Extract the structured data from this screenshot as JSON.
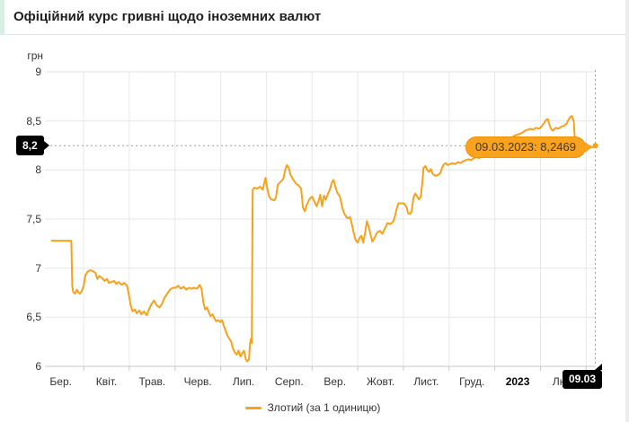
{
  "header": {
    "title": "Офіційний курс гривні щодо іноземних валют"
  },
  "colors": {
    "line": "#F9A11B",
    "tooltip_bg": "#F9A21E",
    "tooltip_border": "#EE9104",
    "badge_bg": "#000000",
    "badge_text": "#FFFFFF",
    "accent_strip": "#D8EFE4",
    "grid": "#E6E6E6",
    "grid_vertical": "#E8E8E8",
    "axis_line": "#C8C8C8",
    "guide_dash": "#9E9E9E",
    "axis_text": "#333333"
  },
  "chart_data": {
    "type": "line",
    "title": "Офіційний курс гривні щодо іноземних валют",
    "ylabel": "грн",
    "xlabel": "",
    "ylim": [
      6,
      9
    ],
    "x_range": [
      0.29,
      12.21
    ],
    "grid": true,
    "legend_position": "bottom",
    "yticks": [
      {
        "value": 9,
        "label": "9"
      },
      {
        "value": 8.5,
        "label": "8,5"
      },
      {
        "value": 8,
        "label": "8"
      },
      {
        "value": 7.5,
        "label": "7,5"
      },
      {
        "value": 7,
        "label": "7"
      },
      {
        "value": 6.5,
        "label": "6,5"
      },
      {
        "value": 6,
        "label": "6"
      }
    ],
    "xticks": [
      {
        "pos": 0.5,
        "label": "Бер.",
        "strong": false
      },
      {
        "pos": 1.5,
        "label": "Квіт.",
        "strong": false
      },
      {
        "pos": 2.5,
        "label": "Трав.",
        "strong": false
      },
      {
        "pos": 3.5,
        "label": "Черв.",
        "strong": false
      },
      {
        "pos": 4.5,
        "label": "Лип.",
        "strong": false
      },
      {
        "pos": 5.5,
        "label": "Серп.",
        "strong": false
      },
      {
        "pos": 6.5,
        "label": "Вер.",
        "strong": false
      },
      {
        "pos": 7.5,
        "label": "Жовт.",
        "strong": false
      },
      {
        "pos": 8.5,
        "label": "Лист.",
        "strong": false
      },
      {
        "pos": 9.5,
        "label": "Груд.",
        "strong": false
      },
      {
        "pos": 10.5,
        "label": "2023",
        "strong": true
      },
      {
        "pos": 11.5,
        "label": "Лют.",
        "strong": false
      }
    ],
    "gridline_months": [
      1,
      2,
      3,
      4,
      5,
      6,
      7,
      8,
      9,
      10,
      11,
      12
    ],
    "current_point": {
      "x": 12.2,
      "value": 8.2469,
      "value_label": "8,2",
      "date_label": "09.03",
      "tooltip": "09.03.2023: 8,2469"
    },
    "series": [
      {
        "name": "Злотий (за 1 одиницю)",
        "color": "#F9A11B",
        "points": [
          [
            0.3,
            7.28
          ],
          [
            0.71,
            7.28
          ],
          [
            0.73,
            7.28
          ],
          [
            0.75,
            6.82
          ],
          [
            0.77,
            6.76
          ],
          [
            0.81,
            6.74
          ],
          [
            0.85,
            6.78
          ],
          [
            0.89,
            6.75
          ],
          [
            0.92,
            6.74
          ],
          [
            0.96,
            6.77
          ],
          [
            1.0,
            6.82
          ],
          [
            1.04,
            6.93
          ],
          [
            1.08,
            6.96
          ],
          [
            1.14,
            6.98
          ],
          [
            1.2,
            6.97
          ],
          [
            1.26,
            6.95
          ],
          [
            1.3,
            6.89
          ],
          [
            1.34,
            6.92
          ],
          [
            1.4,
            6.9
          ],
          [
            1.46,
            6.87
          ],
          [
            1.51,
            6.89
          ],
          [
            1.55,
            6.85
          ],
          [
            1.61,
            6.86
          ],
          [
            1.67,
            6.87
          ],
          [
            1.71,
            6.84
          ],
          [
            1.77,
            6.86
          ],
          [
            1.83,
            6.83
          ],
          [
            1.89,
            6.85
          ],
          [
            1.95,
            6.82
          ],
          [
            1.99,
            6.73
          ],
          [
            2.03,
            6.62
          ],
          [
            2.07,
            6.56
          ],
          [
            2.12,
            6.58
          ],
          [
            2.16,
            6.54
          ],
          [
            2.22,
            6.57
          ],
          [
            2.26,
            6.53
          ],
          [
            2.32,
            6.56
          ],
          [
            2.38,
            6.52
          ],
          [
            2.42,
            6.57
          ],
          [
            2.48,
            6.63
          ],
          [
            2.54,
            6.67
          ],
          [
            2.6,
            6.62
          ],
          [
            2.66,
            6.6
          ],
          [
            2.72,
            6.64
          ],
          [
            2.77,
            6.7
          ],
          [
            2.83,
            6.74
          ],
          [
            2.89,
            6.78
          ],
          [
            2.95,
            6.8
          ],
          [
            3.01,
            6.8
          ],
          [
            3.07,
            6.82
          ],
          [
            3.13,
            6.79
          ],
          [
            3.19,
            6.81
          ],
          [
            3.25,
            6.78
          ],
          [
            3.31,
            6.8
          ],
          [
            3.36,
            6.79
          ],
          [
            3.42,
            6.8
          ],
          [
            3.48,
            6.79
          ],
          [
            3.54,
            6.83
          ],
          [
            3.58,
            6.79
          ],
          [
            3.62,
            6.65
          ],
          [
            3.66,
            6.58
          ],
          [
            3.7,
            6.6
          ],
          [
            3.74,
            6.55
          ],
          [
            3.78,
            6.51
          ],
          [
            3.82,
            6.53
          ],
          [
            3.86,
            6.49
          ],
          [
            3.9,
            6.46
          ],
          [
            3.95,
            6.47
          ],
          [
            3.99,
            6.45
          ],
          [
            4.03,
            6.47
          ],
          [
            4.07,
            6.41
          ],
          [
            4.11,
            6.36
          ],
          [
            4.15,
            6.31
          ],
          [
            4.19,
            6.28
          ],
          [
            4.23,
            6.25
          ],
          [
            4.27,
            6.18
          ],
          [
            4.31,
            6.14
          ],
          [
            4.35,
            6.12
          ],
          [
            4.39,
            6.16
          ],
          [
            4.43,
            6.1
          ],
          [
            4.47,
            6.13
          ],
          [
            4.51,
            6.16
          ],
          [
            4.55,
            6.07
          ],
          [
            4.58,
            6.05
          ],
          [
            4.62,
            6.07
          ],
          [
            4.64,
            6.22
          ],
          [
            4.66,
            6.28
          ],
          [
            4.68,
            6.24
          ],
          [
            4.7,
            7.8
          ],
          [
            4.74,
            7.82
          ],
          [
            4.8,
            7.81
          ],
          [
            4.86,
            7.83
          ],
          [
            4.92,
            7.8
          ],
          [
            4.98,
            7.92
          ],
          [
            5.02,
            7.81
          ],
          [
            5.06,
            7.73
          ],
          [
            5.11,
            7.7
          ],
          [
            5.17,
            7.69
          ],
          [
            5.21,
            7.72
          ],
          [
            5.25,
            7.85
          ],
          [
            5.31,
            7.88
          ],
          [
            5.37,
            7.91
          ],
          [
            5.41,
            8.0
          ],
          [
            5.45,
            8.05
          ],
          [
            5.49,
            8.02
          ],
          [
            5.53,
            7.95
          ],
          [
            5.59,
            7.9
          ],
          [
            5.65,
            7.86
          ],
          [
            5.71,
            7.84
          ],
          [
            5.76,
            7.81
          ],
          [
            5.8,
            7.62
          ],
          [
            5.84,
            7.58
          ],
          [
            5.88,
            7.64
          ],
          [
            5.94,
            7.7
          ],
          [
            6.0,
            7.73
          ],
          [
            6.06,
            7.67
          ],
          [
            6.1,
            7.63
          ],
          [
            6.14,
            7.68
          ],
          [
            6.18,
            7.75
          ],
          [
            6.22,
            7.63
          ],
          [
            6.26,
            7.74
          ],
          [
            6.3,
            7.7
          ],
          [
            6.35,
            7.76
          ],
          [
            6.39,
            7.8
          ],
          [
            6.43,
            7.87
          ],
          [
            6.47,
            7.9
          ],
          [
            6.51,
            7.83
          ],
          [
            6.55,
            7.77
          ],
          [
            6.61,
            7.73
          ],
          [
            6.67,
            7.6
          ],
          [
            6.71,
            7.55
          ],
          [
            6.77,
            7.51
          ],
          [
            6.83,
            7.52
          ],
          [
            6.87,
            7.45
          ],
          [
            6.91,
            7.36
          ],
          [
            6.95,
            7.29
          ],
          [
            7.0,
            7.26
          ],
          [
            7.04,
            7.31
          ],
          [
            7.08,
            7.33
          ],
          [
            7.12,
            7.26
          ],
          [
            7.16,
            7.36
          ],
          [
            7.2,
            7.48
          ],
          [
            7.24,
            7.42
          ],
          [
            7.28,
            7.34
          ],
          [
            7.32,
            7.27
          ],
          [
            7.36,
            7.3
          ],
          [
            7.42,
            7.36
          ],
          [
            7.48,
            7.38
          ],
          [
            7.54,
            7.35
          ],
          [
            7.59,
            7.4
          ],
          [
            7.65,
            7.46
          ],
          [
            7.71,
            7.45
          ],
          [
            7.77,
            7.47
          ],
          [
            7.81,
            7.52
          ],
          [
            7.85,
            7.6
          ],
          [
            7.89,
            7.66
          ],
          [
            7.95,
            7.66
          ],
          [
            8.01,
            7.66
          ],
          [
            8.07,
            7.62
          ],
          [
            8.1,
            7.56
          ],
          [
            8.14,
            7.55
          ],
          [
            8.18,
            7.58
          ],
          [
            8.22,
            7.72
          ],
          [
            8.26,
            7.76
          ],
          [
            8.3,
            7.73
          ],
          [
            8.34,
            7.7
          ],
          [
            8.38,
            7.73
          ],
          [
            8.42,
            7.9
          ],
          [
            8.44,
            8.02
          ],
          [
            8.48,
            8.04
          ],
          [
            8.52,
            8.0
          ],
          [
            8.56,
            7.98
          ],
          [
            8.6,
            8.01
          ],
          [
            8.64,
            7.96
          ],
          [
            8.7,
            7.94
          ],
          [
            8.76,
            7.95
          ],
          [
            8.81,
            7.97
          ],
          [
            8.85,
            8.03
          ],
          [
            8.89,
            8.06
          ],
          [
            8.93,
            8.07
          ],
          [
            8.97,
            8.05
          ],
          [
            9.01,
            8.06
          ],
          [
            9.07,
            8.07
          ],
          [
            9.13,
            8.06
          ],
          [
            9.19,
            8.08
          ],
          [
            9.25,
            8.07
          ],
          [
            9.31,
            8.09
          ],
          [
            9.36,
            8.1
          ],
          [
            9.42,
            8.11
          ],
          [
            9.48,
            8.1
          ],
          [
            9.54,
            8.12
          ],
          [
            9.6,
            8.13
          ],
          [
            9.66,
            8.12
          ],
          [
            9.72,
            8.14
          ],
          [
            9.78,
            8.16
          ],
          [
            9.84,
            8.18
          ],
          [
            9.9,
            8.2
          ],
          [
            9.96,
            8.22
          ],
          [
            10.01,
            8.24
          ],
          [
            10.07,
            8.26
          ],
          [
            10.13,
            8.27
          ],
          [
            10.19,
            8.28
          ],
          [
            10.25,
            8.3
          ],
          [
            10.31,
            8.32
          ],
          [
            10.37,
            8.33
          ],
          [
            10.43,
            8.35
          ],
          [
            10.49,
            8.36
          ],
          [
            10.55,
            8.37
          ],
          [
            10.6,
            8.38
          ],
          [
            10.66,
            8.4
          ],
          [
            10.72,
            8.41
          ],
          [
            10.78,
            8.42
          ],
          [
            10.84,
            8.41
          ],
          [
            10.9,
            8.43
          ],
          [
            10.96,
            8.42
          ],
          [
            11.02,
            8.44
          ],
          [
            11.08,
            8.48
          ],
          [
            11.12,
            8.51
          ],
          [
            11.16,
            8.52
          ],
          [
            11.19,
            8.47
          ],
          [
            11.23,
            8.42
          ],
          [
            11.27,
            8.4
          ],
          [
            11.33,
            8.43
          ],
          [
            11.39,
            8.42
          ],
          [
            11.45,
            8.44
          ],
          [
            11.51,
            8.45
          ],
          [
            11.57,
            8.47
          ],
          [
            11.61,
            8.51
          ],
          [
            11.65,
            8.54
          ],
          [
            11.69,
            8.55
          ],
          [
            11.73,
            8.49
          ],
          [
            11.76,
            8.25
          ],
          [
            11.8,
            8.14
          ],
          [
            11.84,
            8.17
          ],
          [
            11.9,
            8.2
          ],
          [
            11.96,
            8.22
          ],
          [
            12.02,
            8.23
          ],
          [
            12.08,
            8.24
          ],
          [
            12.14,
            8.23
          ],
          [
            12.2,
            8.2469
          ]
        ]
      }
    ]
  }
}
